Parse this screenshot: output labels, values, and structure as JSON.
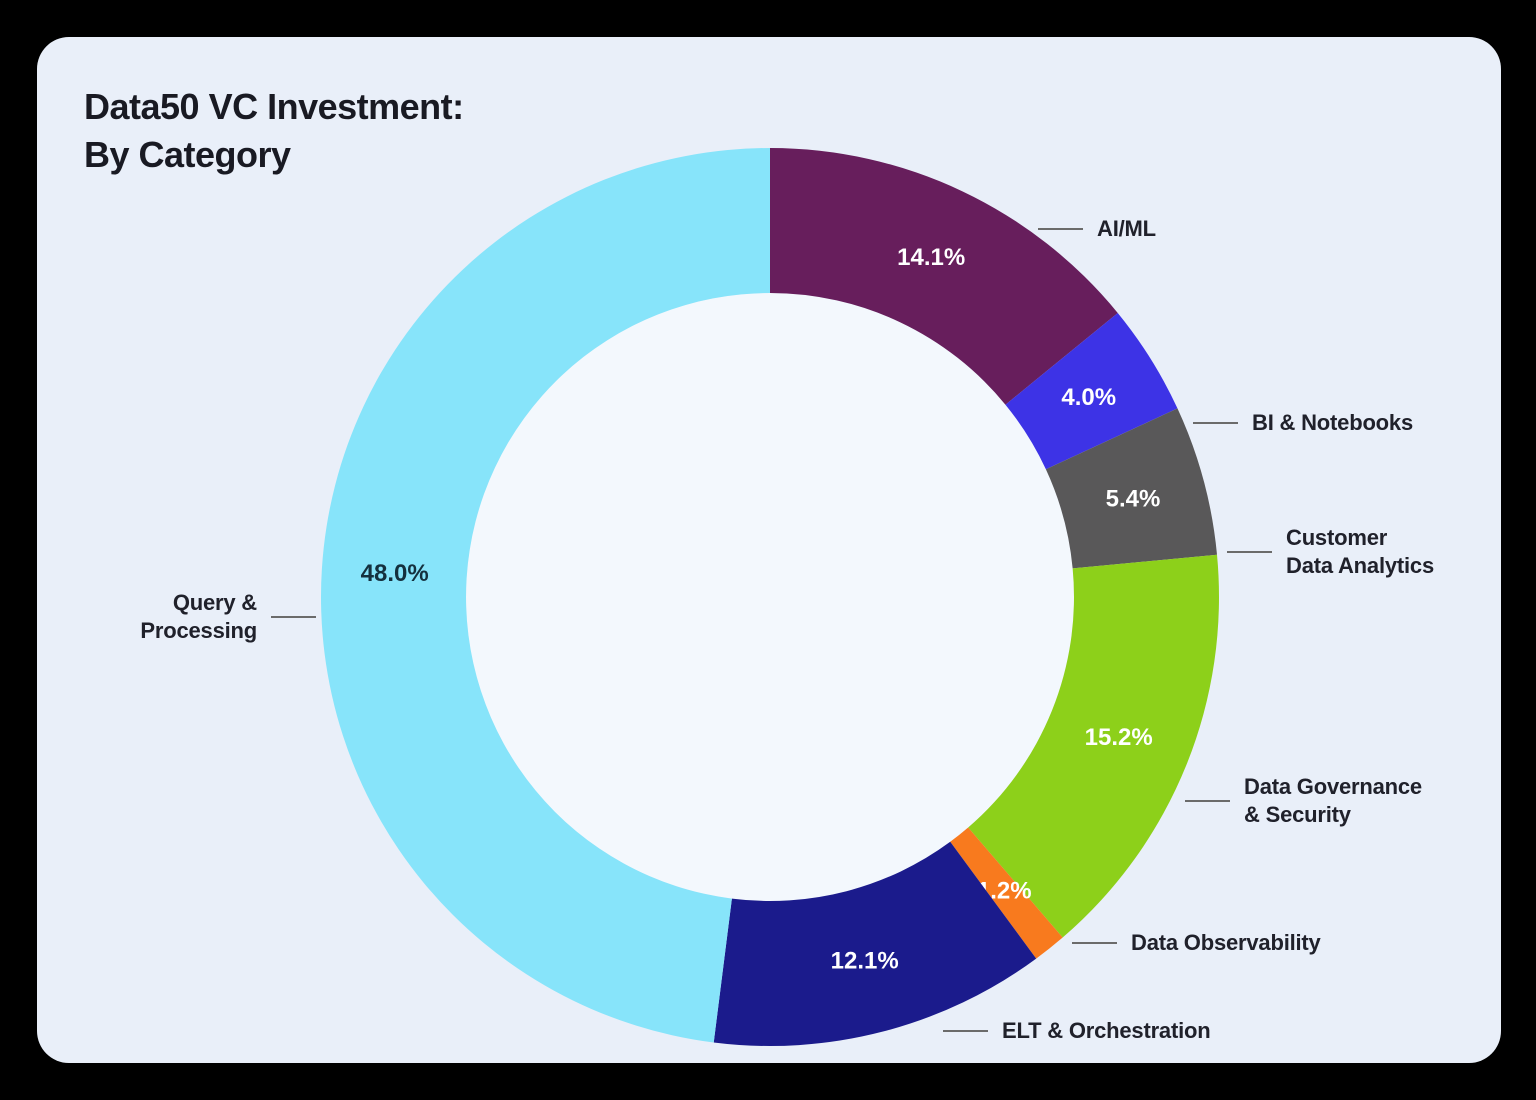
{
  "page": {
    "background": "#000000"
  },
  "card": {
    "background": "#E9EFF9",
    "hole_color": "#F3F8FD"
  },
  "text_colors": {
    "title": "#191A23",
    "category_label": "#20212B",
    "connector_line": "#6B6B6B"
  },
  "chart_data": {
    "type": "pie",
    "subtype": "donut",
    "title": "Data50 VC Investment: By Category",
    "title_lines": [
      "Data50 VC Investment:",
      "By Category"
    ],
    "value_unit": "percent",
    "total": 100.0,
    "start_angle_deg": 0,
    "direction": "clockwise",
    "legend_position": "outside-callouts",
    "series": [
      {
        "name": "AI/ML",
        "value": 14.1,
        "display_value": "14.1%",
        "color": "#671E5C",
        "value_label_color": "#FFFFFF",
        "label_lines": [
          "AI/ML"
        ]
      },
      {
        "name": "BI & Notebooks",
        "value": 4.0,
        "display_value": "4.0%",
        "color": "#3D33E6",
        "value_label_color": "#FFFFFF",
        "label_lines": [
          "BI & Notebooks"
        ]
      },
      {
        "name": "Customer Data Analytics",
        "value": 5.4,
        "display_value": "5.4%",
        "color": "#595859",
        "value_label_color": "#FFFFFF",
        "label_lines": [
          "Customer",
          "Data Analytics"
        ]
      },
      {
        "name": "Data Governance & Security",
        "value": 15.2,
        "display_value": "15.2%",
        "color": "#8DD01A",
        "value_label_color": "#FFFFFF",
        "label_lines": [
          "Data Governance",
          "& Security"
        ]
      },
      {
        "name": "Data Observability",
        "value": 1.2,
        "display_value": "1.2%",
        "color": "#F87A1E",
        "value_label_color": "#FFFFFF",
        "label_lines": [
          "Data Observability"
        ]
      },
      {
        "name": "ELT & Orchestration",
        "value": 12.1,
        "display_value": "12.1%",
        "color": "#1B1B8C",
        "value_label_color": "#FFFFFF",
        "label_lines": [
          "ELT & Orchestration"
        ]
      },
      {
        "name": "Query & Processing",
        "value": 48.0,
        "display_value": "48.0%",
        "color": "#87E4FA",
        "value_label_color": "#14303E",
        "label_lines": [
          "Query &",
          "Processing"
        ]
      }
    ]
  }
}
